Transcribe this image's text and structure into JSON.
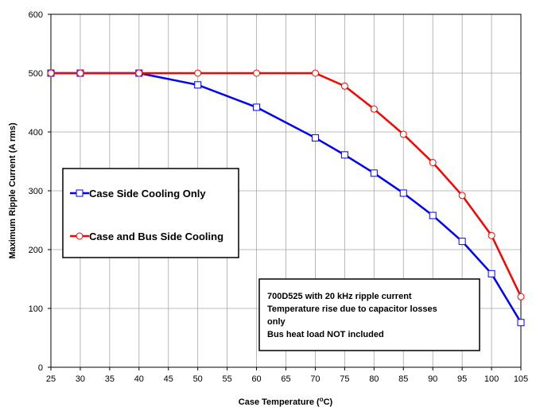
{
  "chart_data": {
    "type": "line",
    "xlabel": "Case Temperature (",
    "xlabel_sup": "o",
    "xlabel_tail": "C)",
    "ylabel": "Maximum Ripple Current (A rms)",
    "xlim": [
      25,
      105
    ],
    "ylim": [
      0,
      600
    ],
    "x_ticks": [
      25,
      30,
      35,
      40,
      45,
      50,
      55,
      60,
      65,
      70,
      75,
      80,
      85,
      90,
      95,
      100,
      105
    ],
    "y_ticks": [
      0,
      100,
      200,
      300,
      400,
      500,
      600
    ],
    "grid": true,
    "legend_placement": "center-left",
    "series": [
      {
        "name": "Case Side Cooling Only",
        "color": "#0000ff",
        "marker": "square",
        "x": [
          25,
          30,
          40,
          50,
          60,
          70,
          75,
          80,
          85,
          90,
          95,
          100,
          105
        ],
        "y": [
          500,
          500,
          500,
          480,
          442,
          390,
          361,
          330,
          296,
          258,
          214,
          159,
          76
        ]
      },
      {
        "name": "Case and Bus Side Cooling",
        "color": "#ff0000",
        "marker": "circle",
        "x": [
          25,
          30,
          40,
          50,
          60,
          70,
          75,
          80,
          85,
          90,
          95,
          100,
          105
        ],
        "y": [
          500,
          500,
          500,
          500,
          500,
          500,
          478,
          439,
          396,
          348,
          292,
          224,
          120
        ]
      }
    ],
    "annotation": {
      "lines": [
        "700D525 with 20 kHz ripple current",
        "Temperature rise due to capacitor losses",
        "only",
        "Bus heat load NOT included"
      ]
    }
  }
}
